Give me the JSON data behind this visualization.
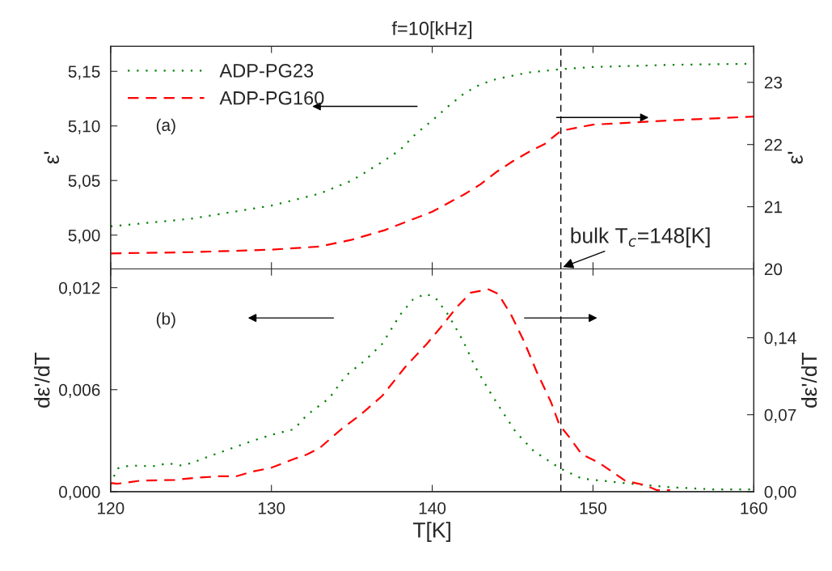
{
  "chart_data": [
    {
      "type": "line",
      "title": "f=10[kHz]",
      "ylabel": "ε'",
      "y2label": "ε'",
      "xlim": [
        120,
        160
      ],
      "xticks": [
        {
          "value": 120,
          "label": null
        },
        {
          "value": 130,
          "label": null
        },
        {
          "value": 140,
          "label": null
        },
        {
          "value": 150,
          "label": null
        },
        {
          "value": 160,
          "label": null
        }
      ],
      "ylim": [
        4.969,
        5.173
      ],
      "yticks": [
        {
          "value": 5.0,
          "label": "5,00"
        },
        {
          "value": 5.05,
          "label": "5,05"
        },
        {
          "value": 5.1,
          "label": "5,10"
        },
        {
          "value": 5.15,
          "label": "5,15"
        }
      ],
      "y2lim": [
        20,
        23.58
      ],
      "y2ticks": [
        20,
        21,
        22,
        23
      ],
      "tick_labels": "y",
      "legend": "top left",
      "annotations": [
        "(a)",
        {
          "text": "bulk T$_{c}$=148[K]",
          "x": 148,
          "y": 4.97
        }
      ],
      "ref_lines": [
        {
          "axis": "x",
          "value": 148,
          "color": "#000000",
          "line_style": "dashed"
        }
      ],
      "series": [
        {
          "name": "ADP-PG23",
          "color": "#008000",
          "line_style": "dotted",
          "x": [
            120,
            125,
            130,
            133,
            135,
            137,
            138,
            139,
            140,
            141,
            142,
            143,
            144,
            146,
            148,
            150,
            155,
            160
          ],
          "values": [
            5.008,
            5.015,
            5.027,
            5.038,
            5.05,
            5.068,
            5.078,
            5.093,
            5.105,
            5.118,
            5.13,
            5.138,
            5.143,
            5.149,
            5.152,
            5.154,
            5.156,
            5.157
          ]
        },
        {
          "name": "ADP-PG160",
          "color": "#ff0000",
          "line_style": "dashed",
          "axis": "y2",
          "x": [
            120,
            125,
            130,
            133,
            135,
            137,
            139,
            140,
            142,
            143,
            144,
            145,
            146,
            147,
            148,
            150,
            155,
            160
          ],
          "values": [
            20.25,
            20.27,
            20.31,
            20.36,
            20.47,
            20.62,
            20.82,
            20.92,
            21.2,
            21.36,
            21.56,
            21.73,
            21.88,
            22.01,
            22.22,
            22.32,
            22.39,
            22.45
          ]
        }
      ]
    },
    {
      "type": "line",
      "xlabel": "T[K]",
      "ylabel": "dε'/dT",
      "y2label": "dε'/dT",
      "xlim": [
        120,
        160
      ],
      "xticks": [
        120,
        130,
        140,
        150,
        160
      ],
      "ylim": [
        0,
        0.0131
      ],
      "yticks": [
        {
          "value": 0,
          "label": "0,000"
        },
        {
          "value": 0.006,
          "label": "0,006"
        },
        {
          "value": 0.012,
          "label": "0,012"
        }
      ],
      "y2lim": [
        0,
        0.2026
      ],
      "y2ticks": [
        {
          "value": 0,
          "label": "0,00"
        },
        {
          "value": 0.07,
          "label": "0,07"
        },
        {
          "value": 0.14,
          "label": "0,14"
        }
      ],
      "annotations": [
        "(b)"
      ],
      "ref_lines": [
        {
          "axis": "x",
          "value": 148,
          "color": "#000000",
          "line_style": "dashed"
        }
      ],
      "series": [
        {
          "color": "#008000",
          "line_style": "dotted",
          "x": [
            120,
            120.4,
            121.2,
            122.6,
            123.6,
            124.3,
            125,
            125.9,
            127.2,
            128.7,
            130,
            131.4,
            132.2,
            133.6,
            134.6,
            135.8,
            136.9,
            138,
            138.8,
            139.6,
            140.2,
            141,
            141.9,
            142.7,
            143.5,
            144.3,
            145.2,
            146.3,
            147.9,
            149.3,
            152,
            154.8,
            157.5,
            159.8
          ],
          "values": [
            0.0004,
            0.00136,
            0.00154,
            0.00149,
            0.00167,
            0.00154,
            0.00167,
            0.002,
            0.00244,
            0.00295,
            0.00334,
            0.00367,
            0.0045,
            0.0055,
            0.0068,
            0.0077,
            0.0087,
            0.0104,
            0.0113,
            0.01164,
            0.0114,
            0.0104,
            0.0089,
            0.0073,
            0.006,
            0.0048,
            0.0035,
            0.0024,
            0.0014,
            0.00077,
            0.0005,
            0.00026,
            0.00013,
            0.00013
          ]
        },
        {
          "color": "#ff0000",
          "line_style": "dashed",
          "axis": "y2",
          "x": [
            120,
            120.4,
            121.8,
            124,
            125.4,
            126.7,
            127.8,
            128.7,
            130,
            131.4,
            132.2,
            133,
            134.4,
            135.5,
            136.9,
            138.3,
            139.7,
            140.5,
            141.6,
            142.4,
            143.5,
            144.1,
            144.9,
            145.7,
            146.5,
            147.4,
            147.9,
            148.5,
            149.3,
            150.4,
            151.2,
            152,
            153.2,
            154,
            154.8
          ],
          "values": [
            0.0079,
            0.0071,
            0.0099,
            0.0107,
            0.0127,
            0.0139,
            0.0139,
            0.0178,
            0.0218,
            0.0297,
            0.0337,
            0.0397,
            0.0575,
            0.0694,
            0.0873,
            0.113,
            0.135,
            0.149,
            0.169,
            0.181,
            0.184,
            0.18,
            0.161,
            0.137,
            0.109,
            0.081,
            0.061,
            0.05,
            0.034,
            0.026,
            0.018,
            0.0099,
            0.006,
            0.0012,
            0.0012
          ]
        }
      ]
    }
  ]
}
